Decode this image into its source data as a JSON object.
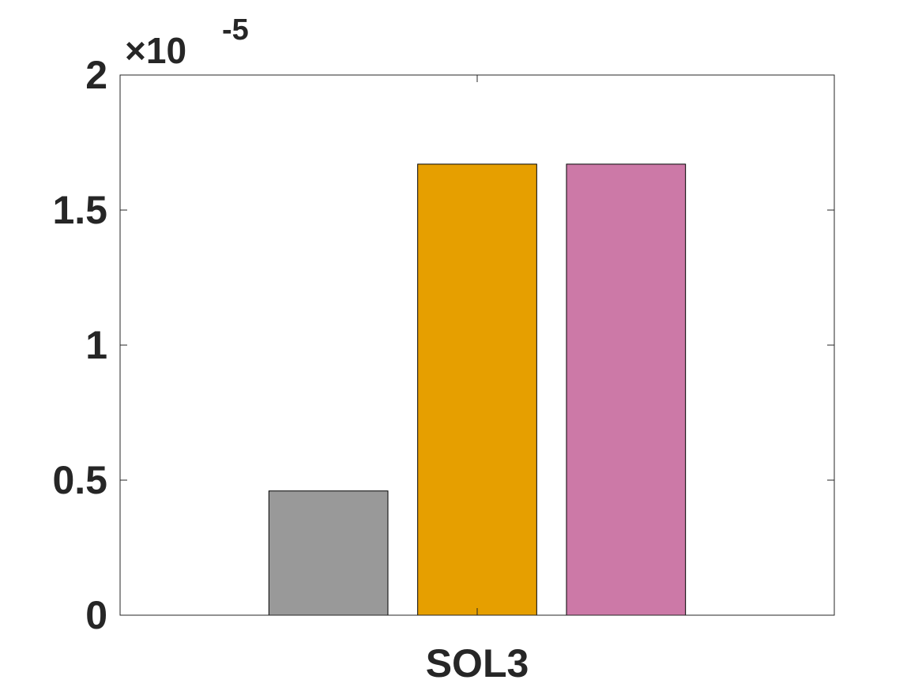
{
  "chart_data": {
    "type": "bar",
    "categories": [
      "SOL3"
    ],
    "series": [
      {
        "values": [
          0.46
        ],
        "color": "#999999"
      },
      {
        "values": [
          1.67
        ],
        "color": "#E69F00"
      },
      {
        "values": [
          1.67
        ],
        "color": "#CC79A7"
      }
    ],
    "ylim": [
      0,
      2
    ],
    "yticks": [
      "0",
      "0.5",
      "1",
      "1.5",
      "2"
    ],
    "ytick_values": [
      0,
      0.5,
      1,
      1.5,
      2
    ],
    "exponent_prefix": "×10",
    "exponent": "-5",
    "grid": false,
    "legend": "none",
    "axis_color": "#262626"
  }
}
